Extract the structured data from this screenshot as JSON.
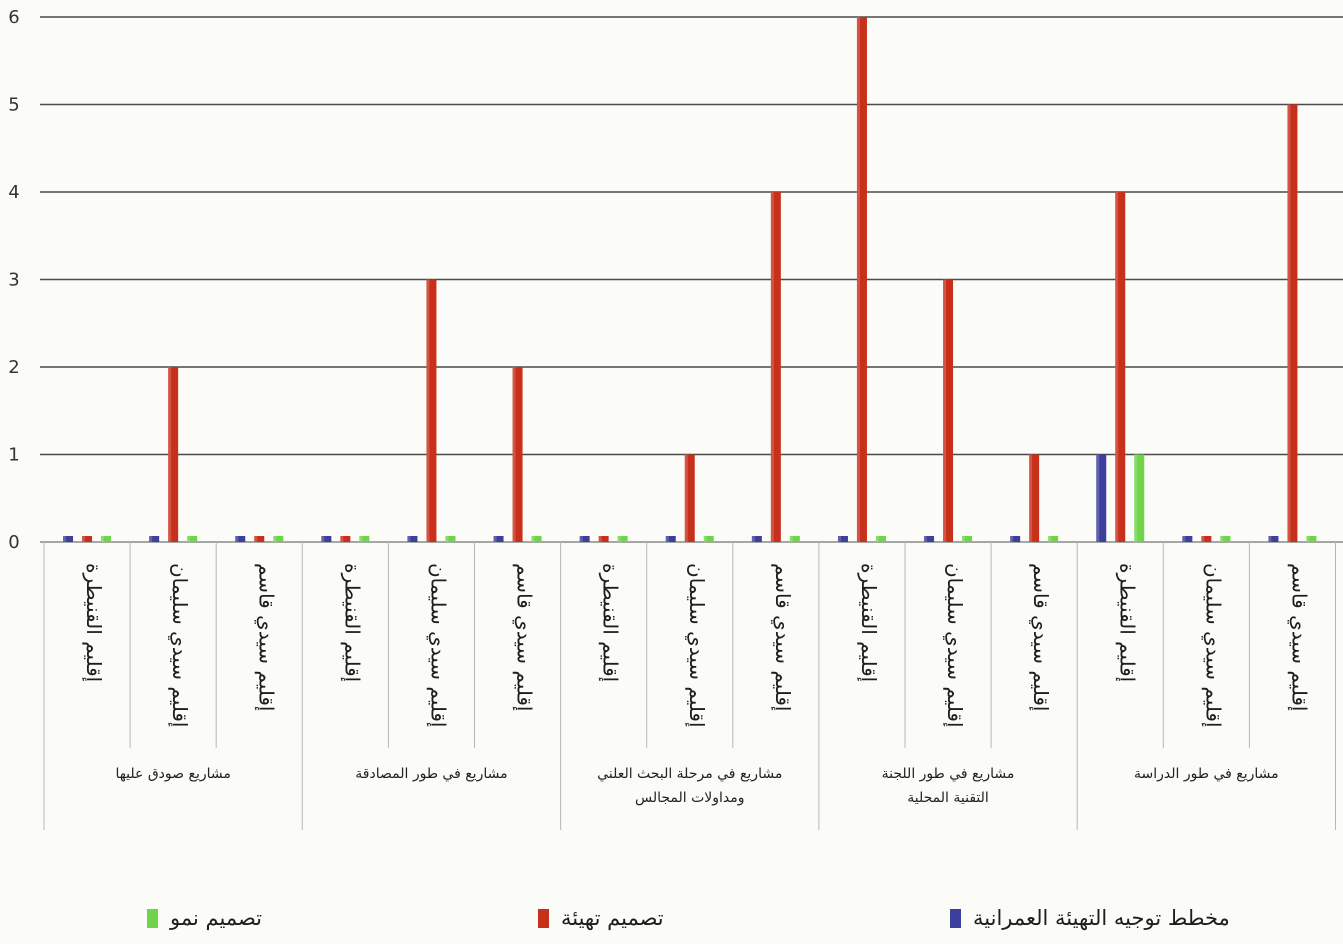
{
  "chart_data": {
    "type": "bar",
    "ylim": [
      0,
      6
    ],
    "yticks": [
      "0",
      "1",
      "2",
      "3",
      "4",
      "5",
      "6"
    ],
    "grid": true,
    "legend_position": "bottom",
    "groups": [
      {
        "label": "مشاريع صودق عليها",
        "categories": [
          "إقليم القنيطرة",
          "إقليم سيدي سليمان",
          "إقليم سيدي قاسم"
        ]
      },
      {
        "label": "مشاريع في طور المصادقة",
        "categories": [
          "إقليم القنيطرة",
          "إقليم سيدي سليمان",
          "إقليم سيدي قاسم"
        ]
      },
      {
        "label": "مشاريع في مرحلة البحث العلني ومداولات المجالس",
        "categories": [
          "إقليم القنيطرة",
          "إقليم سيدي سليمان",
          "إقليم سيدي قاسم"
        ]
      },
      {
        "label": "مشاريع في طور اللجنة التقنية المحلية",
        "categories": [
          "إقليم القنيطرة",
          "إقليم سيدي سليمان",
          "إقليم سيدي قاسم"
        ]
      },
      {
        "label": "مشاريع في طور الدراسة",
        "categories": [
          "إقليم القنيطرة",
          "إقليم سيدي سليمان",
          "إقليم سيدي قاسم"
        ]
      }
    ],
    "series": [
      {
        "name": "مخطط توجيه التهيئة العمرانية",
        "color": "#3c3f9e",
        "values": [
          0,
          0,
          0,
          0,
          0,
          0,
          0,
          0,
          0,
          0,
          0,
          0,
          1,
          0,
          0
        ]
      },
      {
        "name": "تصميم تهيئة",
        "color": "#c9301c",
        "values": [
          0,
          2,
          0,
          0,
          3,
          2,
          0,
          1,
          4,
          6,
          3,
          1,
          4,
          0,
          5
        ]
      },
      {
        "name": "تصميم نمو",
        "color": "#6fd44a",
        "values": [
          0,
          0,
          0,
          0,
          0,
          0,
          0,
          0,
          0,
          0,
          0,
          0,
          1,
          0,
          0
        ]
      }
    ]
  }
}
